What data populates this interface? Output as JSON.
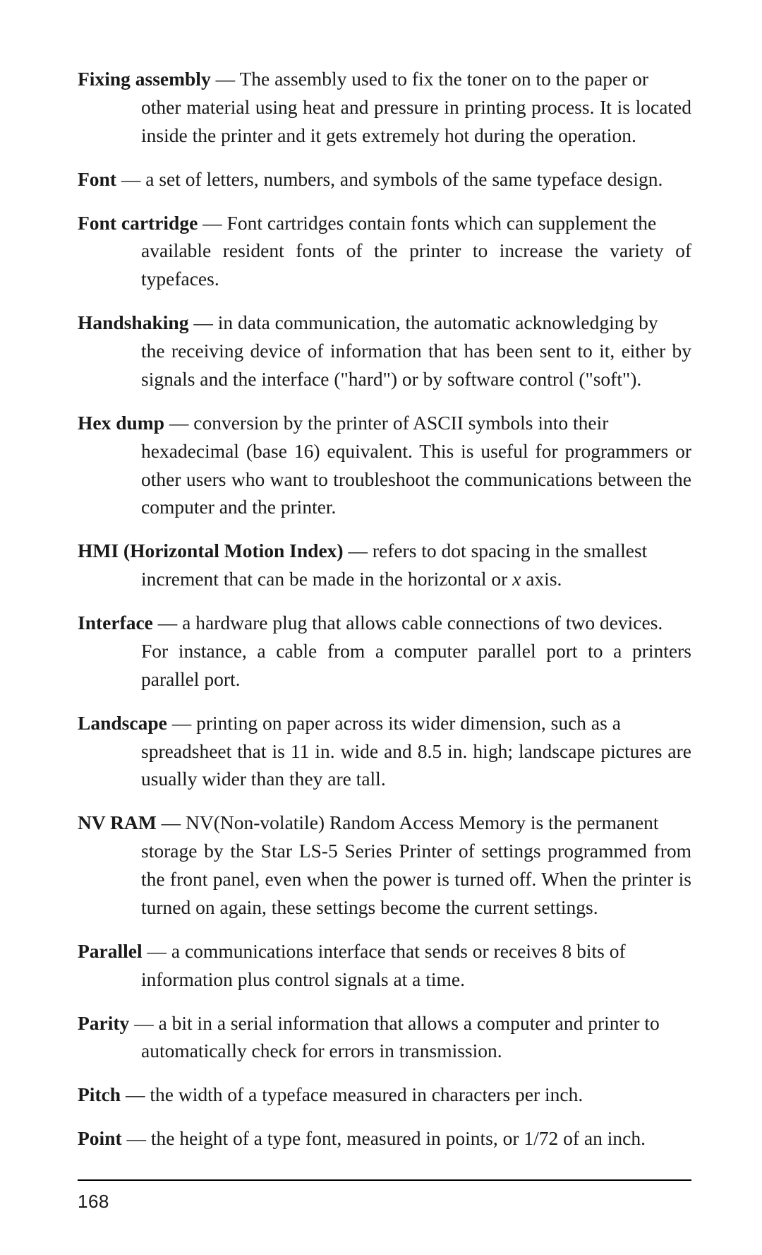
{
  "entries": [
    {
      "term": "Fixing assembly",
      "firstLine": " — The assembly used to fix the toner on to the paper or",
      "body": "other material using heat and pressure in printing process. It is located inside the printer and it gets extremely hot during the operation."
    },
    {
      "term": "Font",
      "firstLine": " — a set of letters, numbers, and symbols of the same typeface design.",
      "body": ""
    },
    {
      "term": "Font cartridge",
      "firstLine": " — Font cartridges contain fonts which can supplement the",
      "body": "available resident fonts of the printer to increase the variety of typefaces."
    },
    {
      "term": "Handshaking",
      "firstLine": " — in data communication, the automatic acknowledging by",
      "body": "the receiving device of information that has been sent to it, either by signals and the interface (\"hard\") or by software control (\"soft\")."
    },
    {
      "term": "Hex dump",
      "firstLine": " — conversion by the printer of ASCII symbols into their",
      "body": "hexadecimal (base 16) equivalent. This is useful for programmers or other users who want to troubleshoot the communications between the computer and the printer."
    },
    {
      "term": "HMI (Horizontal Motion Index)",
      "firstLine": " — refers to dot spacing in the smallest",
      "body": "increment that can be made in the horizontal or <i>x</i> axis."
    },
    {
      "term": "Interface",
      "firstLine": " — a hardware plug that allows cable connections of two devices.",
      "body": "For instance, a cable from a computer parallel port to a printers parallel port."
    },
    {
      "term": "Landscape",
      "firstLine": " — printing on paper across its wider dimension, such as a",
      "body": "spreadsheet that is 11 in. wide and 8.5 in. high; landscape pictures are usually wider than they are tall."
    },
    {
      "term": "NV RAM",
      "firstLine": " — NV(Non-volatile) Random Access Memory is the permanent",
      "body": "storage by the Star LS-5 Series Printer of settings programmed from the front panel, even when the power is turned off. When the printer is turned on again, these settings become the current settings."
    },
    {
      "term": "Parallel",
      "firstLine": " — a communications interface that sends or receives 8 bits of",
      "body": "information plus control signals at a time."
    },
    {
      "term": "Parity",
      "firstLine": " — a bit in a serial information that allows a computer and printer to",
      "body": "automatically check for errors in transmission."
    },
    {
      "term": "Pitch",
      "firstLine": " — the width of a typeface measured in characters per inch.",
      "body": ""
    },
    {
      "term": "Point",
      "firstLine": " — the height of a type font, measured in points, or 1/72 of an inch.",
      "body": ""
    }
  ],
  "pageNumber": "168"
}
